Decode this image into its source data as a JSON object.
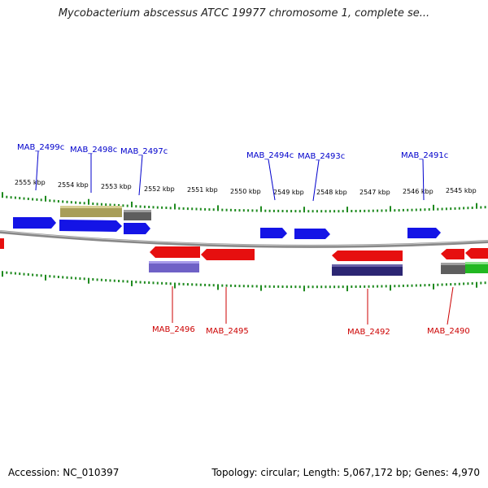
{
  "title": "Mycobacterium abscessus ATCC 19977 chromosome 1, complete se...",
  "footer": {
    "accession": "Accession: NC_010397",
    "topology": "Topology: circular; Length: 5,067,172 bp; Genes: 4,970"
  },
  "colors": {
    "forward": "#1414e6",
    "reverse": "#e60f0f",
    "olive": "#a89e58",
    "gray": "#5e5e5e",
    "purple": "#6f61c6",
    "navy": "#2c2673",
    "green": "#22b822",
    "tick": "#1f8a1f",
    "backbone": "#8a8a8a",
    "forward_label": "#0000cc",
    "reverse_label": "#cc0000"
  },
  "kbp_labels": [
    "2555 kbp",
    "2554 kbp",
    "2553 kbp",
    "2552 kbp",
    "2551 kbp",
    "2550 kbp",
    "2549 kbp",
    "2548 kbp",
    "2547 kbp",
    "2546 kbp",
    "2545 kbp"
  ],
  "gene_labels_top": [
    "MAB_2499c",
    "MAB_2498c",
    "MAB_2497c",
    "MAB_2494c",
    "MAB_2493c",
    "MAB_2491c"
  ],
  "gene_labels_bottom": [
    "MAB_2496",
    "MAB_2495",
    "MAB_2492",
    "MAB_2490"
  ]
}
